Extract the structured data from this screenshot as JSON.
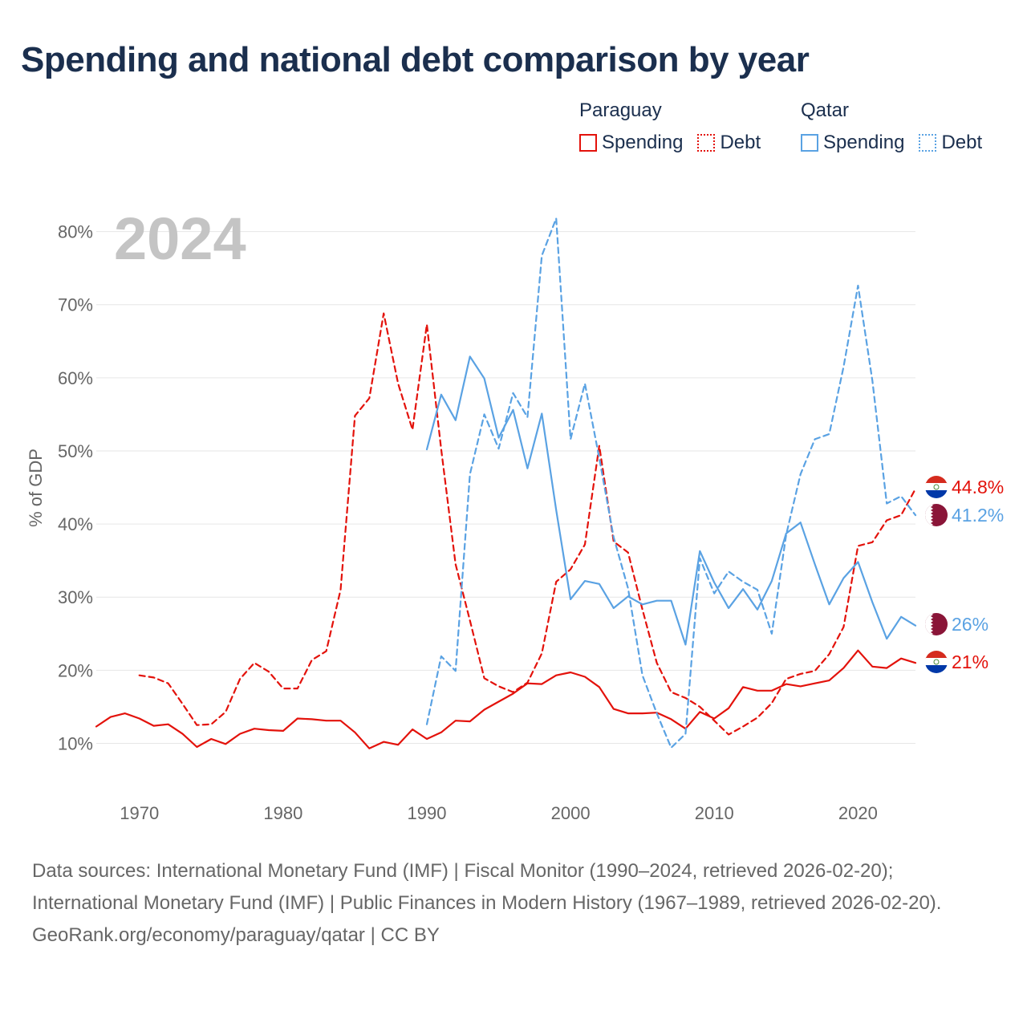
{
  "title": "Spending and national debt comparison by year",
  "legend": {
    "groups": [
      {
        "country": "Paraguay",
        "spending_label": "Spending",
        "debt_label": "Debt",
        "color": "#e3120b"
      },
      {
        "country": "Qatar",
        "spending_label": "Spending",
        "debt_label": "Debt",
        "color": "#5aa2e3"
      }
    ]
  },
  "year_watermark": "2024",
  "chart_data": {
    "type": "line",
    "title": "Spending and national debt comparison by year",
    "xlabel": "",
    "ylabel": "% of GDP",
    "xlim": [
      1967,
      2024
    ],
    "ylim": [
      5,
      85
    ],
    "x_ticks": [
      1970,
      1980,
      1990,
      2000,
      2010,
      2020
    ],
    "y_ticks": [
      10,
      20,
      30,
      40,
      50,
      60,
      70,
      80
    ],
    "y_tick_labels": [
      "10%",
      "20%",
      "30%",
      "40%",
      "50%",
      "60%",
      "70%",
      "80%"
    ],
    "grid": true,
    "series": [
      {
        "name": "Paraguay Spending",
        "country": "Paraguay",
        "style": "solid",
        "color": "#e3120b",
        "end_label": "21%",
        "x": [
          1967,
          1968,
          1969,
          1970,
          1971,
          1972,
          1973,
          1974,
          1975,
          1976,
          1977,
          1978,
          1979,
          1980,
          1981,
          1982,
          1983,
          1984,
          1985,
          1986,
          1987,
          1988,
          1989,
          1990,
          1991,
          1992,
          1993,
          1994,
          1995,
          1996,
          1997,
          1998,
          1999,
          2000,
          2001,
          2002,
          2003,
          2004,
          2005,
          2006,
          2007,
          2008,
          2009,
          2010,
          2011,
          2012,
          2013,
          2014,
          2015,
          2016,
          2017,
          2018,
          2019,
          2020,
          2021,
          2022,
          2023,
          2024
        ],
        "values": [
          12.3,
          13.6,
          14.1,
          13.4,
          12.4,
          12.6,
          11.3,
          9.5,
          10.6,
          9.9,
          11.3,
          12.0,
          11.8,
          11.7,
          13.4,
          13.3,
          13.1,
          13.1,
          11.5,
          9.3,
          10.2,
          9.8,
          11.9,
          10.6,
          11.5,
          13.1,
          13.0,
          14.6,
          15.7,
          16.8,
          18.2,
          18.1,
          19.3,
          19.7,
          19.1,
          17.7,
          14.7,
          14.1,
          14.1,
          14.2,
          13.3,
          12.0,
          14.3,
          13.4,
          14.8,
          17.7,
          17.2,
          17.2,
          18.1,
          17.8,
          18.2,
          18.6,
          20.3,
          22.7,
          20.5,
          20.3,
          21.6,
          21.0
        ]
      },
      {
        "name": "Paraguay Debt",
        "country": "Paraguay",
        "style": "dashed",
        "color": "#e3120b",
        "end_label": "44.8%",
        "x": [
          1970,
          1971,
          1972,
          1973,
          1974,
          1975,
          1976,
          1977,
          1978,
          1979,
          1980,
          1981,
          1982,
          1983,
          1984,
          1985,
          1986,
          1987,
          1988,
          1989,
          1990,
          1991,
          1992,
          1993,
          1994,
          1995,
          1996,
          1997,
          1998,
          1999,
          2000,
          2001,
          2002,
          2003,
          2004,
          2005,
          2006,
          2007,
          2008,
          2009,
          2010,
          2011,
          2012,
          2013,
          2014,
          2015,
          2016,
          2017,
          2018,
          2019,
          2020,
          2021,
          2022,
          2023,
          2024
        ],
        "values": [
          19.3,
          19.0,
          18.2,
          15.4,
          12.5,
          12.6,
          14.3,
          18.8,
          21.0,
          19.8,
          17.5,
          17.5,
          21.4,
          22.6,
          31.0,
          54.8,
          57.2,
          68.8,
          59.2,
          52.9,
          67.3,
          50.2,
          34.5,
          26.8,
          18.9,
          17.8,
          17.0,
          18.3,
          22.3,
          32.1,
          33.8,
          37.2,
          50.7,
          37.6,
          36.1,
          28.3,
          21.0,
          17.0,
          16.2,
          15.0,
          13.1,
          11.2,
          12.3,
          13.5,
          15.5,
          18.8,
          19.5,
          19.9,
          22.2,
          25.9,
          37.0,
          37.5,
          40.5,
          41.2,
          44.8
        ]
      },
      {
        "name": "Qatar Spending",
        "country": "Qatar",
        "style": "solid",
        "color": "#5aa2e3",
        "end_label": "26%",
        "x": [
          1990,
          1991,
          1992,
          1993,
          1994,
          1995,
          1996,
          1997,
          1998,
          1999,
          2000,
          2001,
          2002,
          2003,
          2004,
          2005,
          2006,
          2007,
          2008,
          2009,
          2010,
          2011,
          2012,
          2013,
          2014,
          2015,
          2016,
          2017,
          2018,
          2019,
          2020,
          2021,
          2022,
          2023,
          2024
        ],
        "values": [
          50.2,
          57.7,
          54.2,
          62.9,
          59.9,
          51.8,
          55.6,
          47.6,
          55.1,
          41.9,
          29.7,
          32.2,
          31.8,
          28.5,
          30.1,
          29.0,
          29.5,
          29.5,
          23.5,
          36.3,
          32.0,
          28.5,
          31.1,
          28.3,
          32.2,
          38.7,
          40.2,
          34.5,
          29.0,
          32.6,
          34.8,
          29.3,
          24.3,
          27.3,
          26.1
        ]
      },
      {
        "name": "Qatar Debt",
        "country": "Qatar",
        "style": "dashed",
        "color": "#5aa2e3",
        "end_label": "41.2%",
        "x": [
          1990,
          1991,
          1992,
          1993,
          1994,
          1995,
          1996,
          1997,
          1998,
          1999,
          2000,
          2001,
          2002,
          2003,
          2004,
          2005,
          2006,
          2007,
          2008,
          2009,
          2010,
          2011,
          2012,
          2013,
          2014,
          2015,
          2016,
          2017,
          2018,
          2019,
          2020,
          2021,
          2022,
          2023,
          2024
        ],
        "values": [
          12.6,
          21.9,
          19.9,
          46.8,
          55.0,
          50.3,
          57.9,
          54.6,
          76.7,
          81.8,
          51.6,
          59.2,
          49.0,
          38.2,
          31.2,
          19.3,
          14.1,
          9.4,
          11.3,
          35.3,
          30.5,
          33.5,
          32.1,
          31.0,
          25.0,
          38.5,
          46.8,
          51.6,
          52.3,
          61.5,
          72.6,
          59.6,
          42.8,
          43.8,
          41.2
        ]
      }
    ]
  },
  "source": {
    "line1": "Data sources: International Monetary Fund (IMF) | Fiscal Monitor (1990–2024, retrieved 2026-02-20); International Monetary Fund (IMF) | Public Finances in Modern History (1967–1989, retrieved 2026-02-20).",
    "line2": "GeoRank.org/economy/paraguay/qatar | CC BY"
  }
}
